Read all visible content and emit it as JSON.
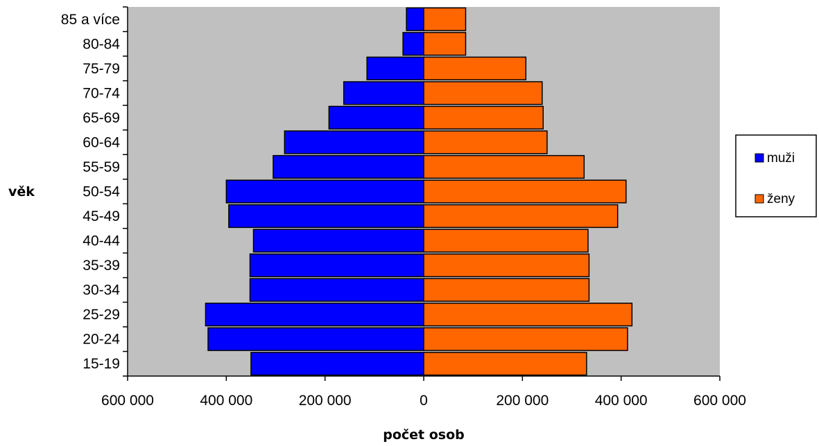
{
  "chart_data": {
    "type": "bar",
    "orientation": "horizontal",
    "layout": "population-pyramid",
    "title": "",
    "xlabel": "počet osob",
    "ylabel": "věk",
    "xlim": [
      -600000,
      600000
    ],
    "x_ticks": [
      -600000,
      -400000,
      -200000,
      0,
      200000,
      400000,
      600000
    ],
    "x_tick_labels": [
      "600 000",
      "400 000",
      "200 000",
      "0",
      "200 000",
      "400 000",
      "600 000"
    ],
    "categories": [
      "15-19",
      "20-24",
      "25-29",
      "30-34",
      "35-39",
      "40-44",
      "45-49",
      "50-54",
      "55-59",
      "60-64",
      "65-69",
      "70-74",
      "75-79",
      "80-84",
      "85 a více"
    ],
    "series": [
      {
        "name": "muži",
        "color": "#0000ff",
        "direction": "left",
        "values": [
          350000,
          437000,
          442000,
          352000,
          352000,
          345000,
          395000,
          400000,
          305000,
          282000,
          192000,
          162000,
          115000,
          42000,
          35000
        ]
      },
      {
        "name": "ženy",
        "color": "#ff6600",
        "direction": "right",
        "values": [
          330000,
          413000,
          422000,
          335000,
          335000,
          333000,
          393000,
          410000,
          325000,
          250000,
          242000,
          240000,
          207000,
          85000,
          85000
        ]
      }
    ],
    "grid": false,
    "plot_background": "#c0c0c0",
    "legend": "right"
  }
}
